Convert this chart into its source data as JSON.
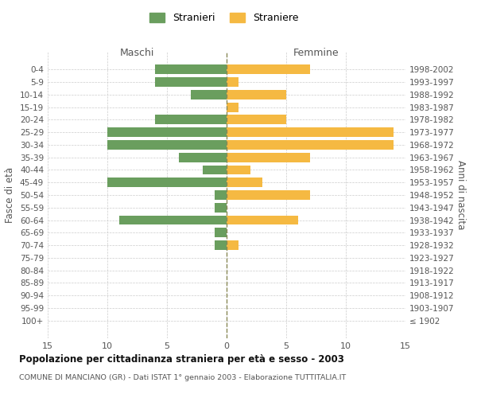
{
  "age_groups": [
    "0-4",
    "5-9",
    "10-14",
    "15-19",
    "20-24",
    "25-29",
    "30-34",
    "35-39",
    "40-44",
    "45-49",
    "50-54",
    "55-59",
    "60-64",
    "65-69",
    "70-74",
    "75-79",
    "80-84",
    "85-89",
    "90-94",
    "95-99",
    "100+"
  ],
  "birth_years": [
    "1998-2002",
    "1993-1997",
    "1988-1992",
    "1983-1987",
    "1978-1982",
    "1973-1977",
    "1968-1972",
    "1963-1967",
    "1958-1962",
    "1953-1957",
    "1948-1952",
    "1943-1947",
    "1938-1942",
    "1933-1937",
    "1928-1932",
    "1923-1927",
    "1918-1922",
    "1913-1917",
    "1908-1912",
    "1903-1907",
    "≤ 1902"
  ],
  "maschi": [
    6,
    6,
    3,
    0,
    6,
    10,
    10,
    4,
    2,
    10,
    1,
    1,
    9,
    1,
    1,
    0,
    0,
    0,
    0,
    0,
    0
  ],
  "femmine": [
    7,
    1,
    5,
    1,
    5,
    14,
    14,
    7,
    2,
    3,
    7,
    0,
    6,
    0,
    1,
    0,
    0,
    0,
    0,
    0,
    0
  ],
  "color_maschi": "#6a9e5e",
  "color_femmine": "#f5b942",
  "title": "Popolazione per cittadinanza straniera per età e sesso - 2003",
  "subtitle": "COMUNE DI MANCIANO (GR) - Dati ISTAT 1° gennaio 2003 - Elaborazione TUTTITALIA.IT",
  "xlabel_left": "Maschi",
  "xlabel_right": "Femmine",
  "ylabel_left": "Fasce di età",
  "ylabel_right": "Anni di nascita",
  "legend_maschi": "Stranieri",
  "legend_femmine": "Straniere",
  "xlim": 15,
  "bg_color": "#ffffff",
  "grid_color": "#cccccc"
}
